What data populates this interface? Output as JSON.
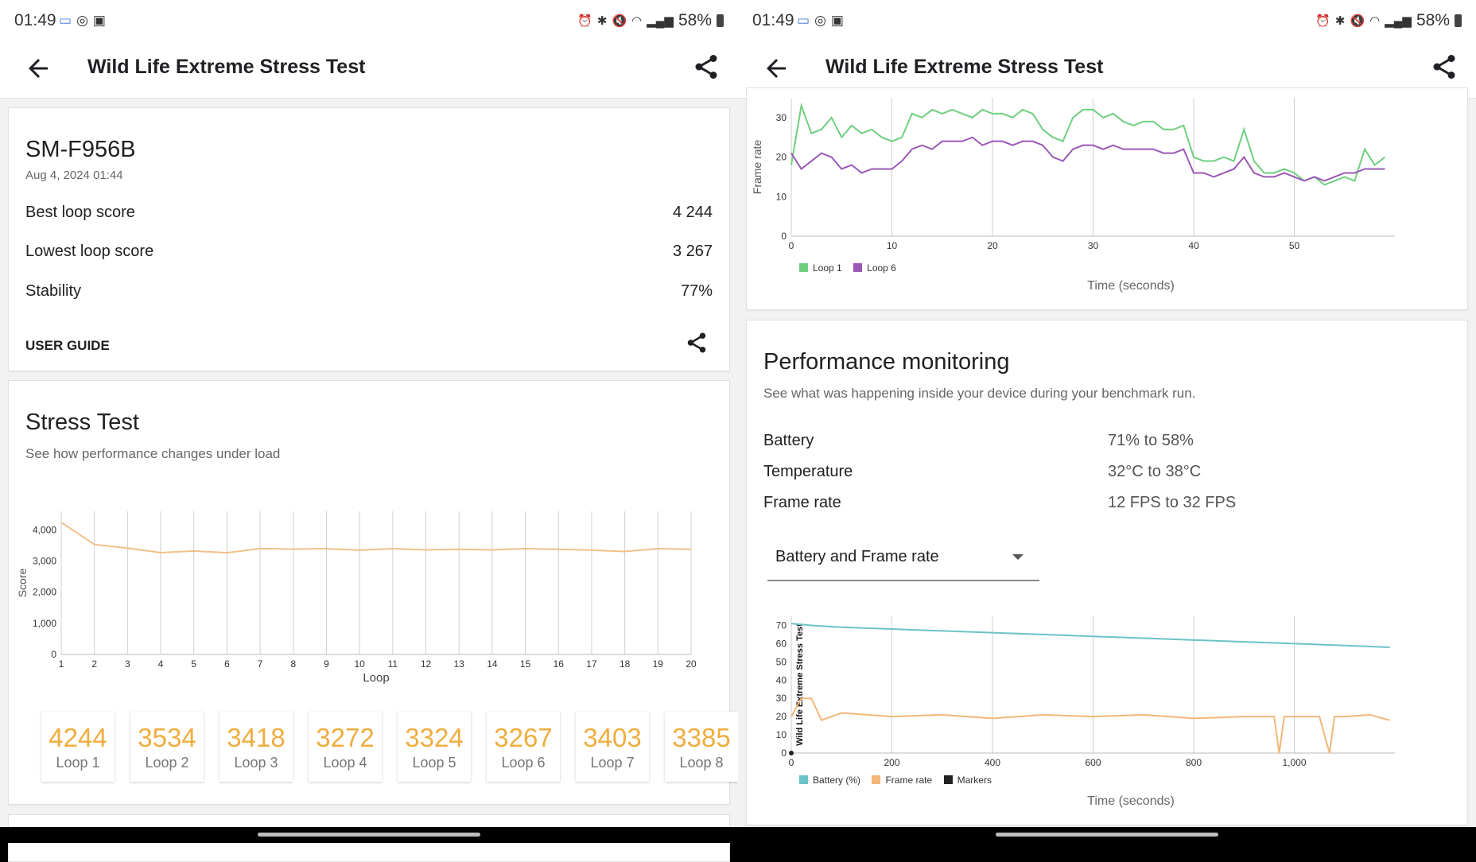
{
  "status": {
    "time": "01:49",
    "battery": "58%"
  },
  "left": {
    "appbar": {
      "title": "Wild Life Extreme Stress Test"
    },
    "device_card": {
      "device": "SM-F956B",
      "date": "Aug 4, 2024 01:44",
      "rows": [
        {
          "label": "Best loop score",
          "value": "4 244"
        },
        {
          "label": "Lowest loop score",
          "value": "3 267"
        },
        {
          "label": "Stability",
          "value": "77%"
        }
      ],
      "user_guide": "USER GUIDE"
    },
    "stress_card": {
      "title": "Stress Test",
      "subtitle": "See how performance changes under load",
      "loops": [
        {
          "value": "4244",
          "label": "Loop 1"
        },
        {
          "value": "3534",
          "label": "Loop 2"
        },
        {
          "value": "3418",
          "label": "Loop 3"
        },
        {
          "value": "3272",
          "label": "Loop 4"
        },
        {
          "value": "3324",
          "label": "Loop 5"
        },
        {
          "value": "3267",
          "label": "Loop 6"
        },
        {
          "value": "3403",
          "label": "Loop 7"
        },
        {
          "value": "3385",
          "label": "Loop 8"
        }
      ]
    }
  },
  "right": {
    "appbar": {
      "title": "Wild Life Extreme Stress Test"
    },
    "perf_card": {
      "title": "Performance monitoring",
      "subtitle": "See what was happening inside your device during your benchmark run.",
      "rows": [
        {
          "label": "Battery",
          "value": "71% to 58%"
        },
        {
          "label": "Temperature",
          "value": "32°C to 38°C"
        },
        {
          "label": "Frame rate",
          "value": "12 FPS to 32 FPS"
        }
      ],
      "dropdown": "Battery and Frame rate"
    }
  },
  "colors": {
    "score_line": "#f0c08a",
    "loop_value": "#f0ad3e",
    "loop1": "#6fcf7f",
    "loop6": "#9b59b6",
    "battery": "#6cc3c7",
    "framerate": "#f2b77a",
    "markers": "#222222"
  },
  "chart_data": [
    {
      "type": "line",
      "name_key": "stress",
      "title": "",
      "xlabel": "Loop",
      "ylabel": "Score",
      "x": [
        1,
        2,
        3,
        4,
        5,
        6,
        7,
        8,
        9,
        10,
        11,
        12,
        13,
        14,
        15,
        16,
        17,
        18,
        19,
        20
      ],
      "series": [
        {
          "values": [
            4244,
            3534,
            3418,
            3272,
            3324,
            3267,
            3403,
            3385,
            3400,
            3350,
            3400,
            3360,
            3380,
            3360,
            3400,
            3380,
            3350,
            3310,
            3400,
            3380
          ]
        }
      ],
      "ylim": [
        0,
        4600
      ],
      "yticks": [
        "0",
        "1,000",
        "2,000",
        "3,000",
        "4,000"
      ],
      "grid": "vertical"
    },
    {
      "type": "line",
      "name_key": "framerate_loops",
      "title": "",
      "xlabel": "Time (seconds)",
      "ylabel": "Frame rate",
      "xlim": [
        0,
        60
      ],
      "ylim": [
        0,
        35
      ],
      "xticks": [
        "0",
        "10",
        "20",
        "30",
        "40",
        "50"
      ],
      "yticks": [
        "0",
        "10",
        "20",
        "30"
      ],
      "legend": "bottom-left",
      "series": [
        {
          "name": "Loop 1",
          "x": [
            0,
            1,
            2,
            3,
            4,
            5,
            6,
            7,
            8,
            9,
            10,
            11,
            12,
            13,
            14,
            15,
            16,
            17,
            18,
            19,
            20,
            21,
            22,
            23,
            24,
            25,
            26,
            27,
            28,
            29,
            30,
            31,
            32,
            33,
            34,
            35,
            36,
            37,
            38,
            39,
            40,
            41,
            42,
            43,
            44,
            45,
            46,
            47,
            48,
            49,
            50,
            51,
            52,
            53,
            54,
            55,
            56,
            57,
            58,
            59
          ],
          "values": [
            18,
            33,
            26,
            27,
            30,
            25,
            28,
            26,
            27,
            25,
            24,
            25,
            31,
            30,
            32,
            31,
            32,
            31,
            30,
            32,
            31,
            31,
            30,
            32,
            31,
            27,
            25,
            24,
            30,
            32,
            32,
            30,
            31,
            29,
            28,
            29,
            29,
            27,
            27,
            28,
            20,
            19,
            19,
            20,
            19,
            27,
            19,
            16,
            16,
            17,
            16,
            14,
            15,
            13,
            14,
            15,
            14,
            22,
            18,
            20
          ]
        },
        {
          "name": "Loop 6",
          "x": [
            0,
            1,
            2,
            3,
            4,
            5,
            6,
            7,
            8,
            9,
            10,
            11,
            12,
            13,
            14,
            15,
            16,
            17,
            18,
            19,
            20,
            21,
            22,
            23,
            24,
            25,
            26,
            27,
            28,
            29,
            30,
            31,
            32,
            33,
            34,
            35,
            36,
            37,
            38,
            39,
            40,
            41,
            42,
            43,
            44,
            45,
            46,
            47,
            48,
            49,
            50,
            51,
            52,
            53,
            54,
            55,
            56,
            57,
            58,
            59
          ],
          "values": [
            21,
            17,
            19,
            21,
            20,
            17,
            18,
            16,
            17,
            17,
            17,
            19,
            22,
            23,
            22,
            24,
            24,
            24,
            25,
            23,
            24,
            24,
            23,
            24,
            24,
            23,
            20,
            19,
            22,
            23,
            23,
            22,
            23,
            22,
            22,
            22,
            22,
            21,
            21,
            22,
            16,
            16,
            15,
            16,
            17,
            20,
            16,
            15,
            15,
            16,
            15,
            14,
            15,
            14,
            15,
            16,
            16,
            17,
            17,
            17
          ]
        }
      ]
    },
    {
      "type": "line",
      "name_key": "battery_framerate",
      "title": "",
      "xlabel": "Time (seconds)",
      "ylabel": "Wild Life Extreme Stress Test",
      "xlim": [
        0,
        1200
      ],
      "ylim": [
        0,
        75
      ],
      "xticks": [
        "0",
        "200",
        "400",
        "600",
        "800",
        "1,000"
      ],
      "yticks": [
        "0",
        "10",
        "20",
        "30",
        "40",
        "50",
        "60",
        "70"
      ],
      "legend": "bottom-left",
      "series": [
        {
          "name": "Battery (%)",
          "x": [
            0,
            40,
            100,
            200,
            300,
            400,
            500,
            600,
            700,
            800,
            900,
            1000,
            1100,
            1190
          ],
          "values": [
            71,
            70,
            69,
            68,
            67,
            66,
            65,
            64,
            63,
            62,
            61,
            60,
            59,
            58
          ]
        },
        {
          "name": "Frame rate",
          "x": [
            0,
            20,
            40,
            60,
            100,
            200,
            300,
            400,
            500,
            600,
            700,
            800,
            900,
            960,
            970,
            980,
            1000,
            1050,
            1070,
            1080,
            1100,
            1150,
            1190
          ],
          "values": [
            20,
            30,
            30,
            18,
            22,
            20,
            21,
            19,
            21,
            20,
            21,
            19,
            20,
            20,
            0,
            20,
            20,
            20,
            0,
            20,
            20,
            21,
            18
          ]
        },
        {
          "name": "Markers",
          "x": [
            0
          ],
          "values": [
            0
          ]
        }
      ]
    }
  ]
}
